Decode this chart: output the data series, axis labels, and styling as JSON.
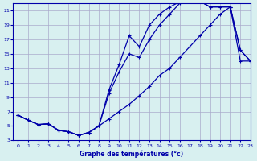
{
  "xlabel": "Graphe des températures (°c)",
  "bg_color": "#d8f0f0",
  "grid_color": "#aaaacc",
  "line_color": "#0000aa",
  "xlim": [
    -0.5,
    23
  ],
  "ylim": [
    3,
    22
  ],
  "yticks": [
    3,
    5,
    7,
    9,
    11,
    13,
    15,
    17,
    19,
    21
  ],
  "xticks": [
    0,
    1,
    2,
    3,
    4,
    5,
    6,
    7,
    8,
    9,
    10,
    11,
    12,
    13,
    14,
    15,
    16,
    17,
    18,
    19,
    20,
    21,
    22,
    23
  ],
  "line1_x": [
    0,
    1,
    2,
    3,
    4,
    5,
    6,
    7,
    8,
    9,
    10,
    11,
    12,
    13,
    14,
    15,
    16,
    17,
    18,
    19,
    20,
    21,
    22,
    23
  ],
  "line1_y": [
    6.5,
    5.8,
    5.2,
    5.3,
    4.4,
    4.2,
    3.7,
    4.1,
    5.0,
    10.0,
    13.5,
    17.5,
    16.0,
    19.0,
    20.5,
    21.5,
    22.2,
    22.5,
    22.3,
    21.5,
    21.5,
    21.5,
    15.5,
    14.0
  ],
  "line2_x": [
    0,
    1,
    2,
    3,
    4,
    5,
    6,
    7,
    8,
    9,
    10,
    11,
    12,
    13,
    14,
    15,
    16,
    17,
    18,
    19,
    20,
    21,
    22,
    23
  ],
  "line2_y": [
    6.5,
    5.8,
    5.2,
    5.3,
    4.4,
    4.2,
    3.7,
    4.1,
    5.0,
    9.5,
    12.5,
    15.0,
    14.5,
    17.0,
    19.0,
    20.5,
    22.0,
    22.5,
    22.3,
    21.5,
    21.5,
    21.5,
    15.5,
    14.0
  ],
  "line3_x": [
    0,
    1,
    2,
    3,
    4,
    5,
    6,
    7,
    8,
    9,
    10,
    11,
    12,
    13,
    14,
    15,
    16,
    17,
    18,
    19,
    20,
    21,
    22,
    23
  ],
  "line3_y": [
    6.5,
    5.8,
    5.2,
    5.3,
    4.4,
    4.2,
    3.7,
    4.1,
    5.0,
    6.0,
    7.0,
    8.0,
    9.2,
    10.5,
    12.0,
    13.0,
    14.5,
    16.0,
    17.5,
    19.0,
    20.5,
    21.5,
    14.0,
    14.0
  ]
}
